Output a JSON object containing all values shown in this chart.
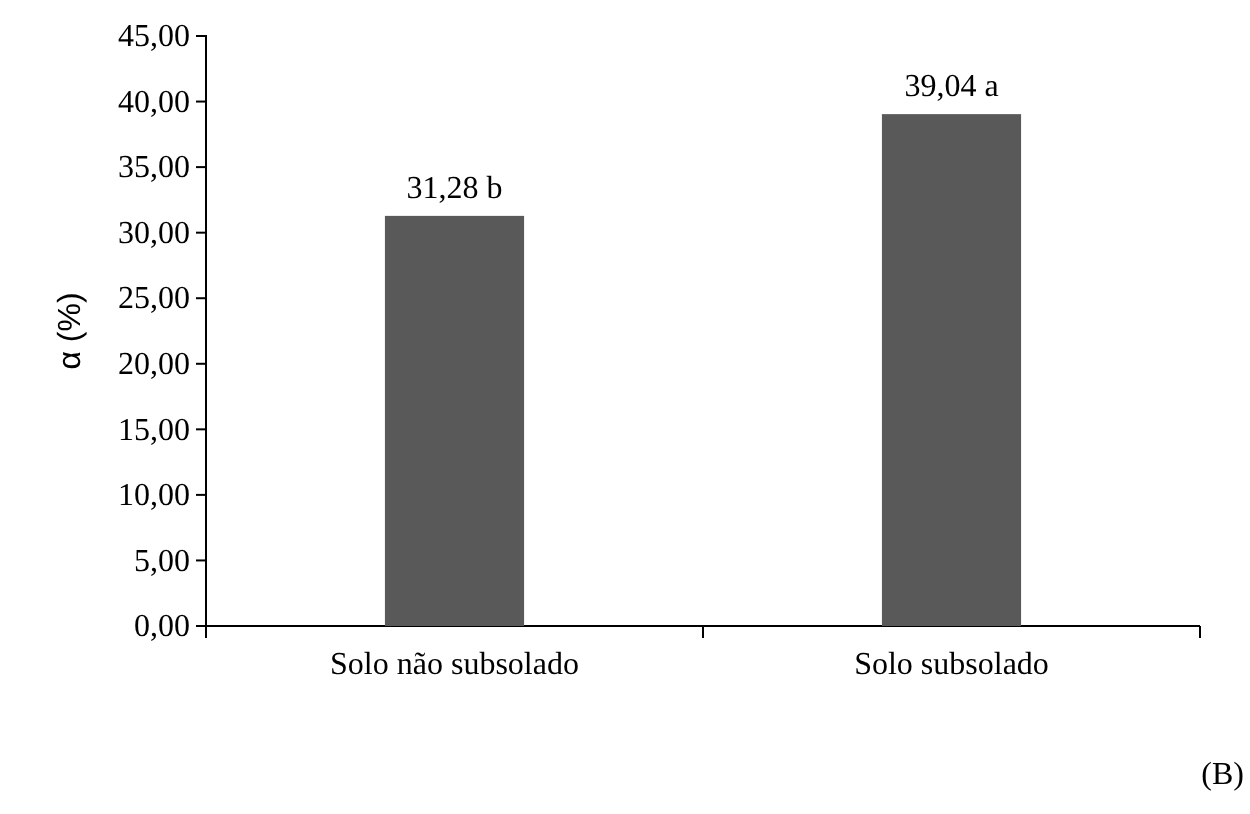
{
  "chart_data": {
    "type": "bar",
    "ylabel": "α (%)",
    "categories": [
      "Solo não subsolado",
      "Solo subsolado"
    ],
    "values": [
      31.28,
      39.04
    ],
    "value_labels": [
      "31,28 b",
      "39,04 a"
    ],
    "color": "#595959",
    "ylim": [
      0,
      45
    ],
    "yticks": [
      {
        "value": 0,
        "label": "0,00"
      },
      {
        "value": 5,
        "label": "5,00"
      },
      {
        "value": 10,
        "label": "10,00"
      },
      {
        "value": 15,
        "label": "15,00"
      },
      {
        "value": 20,
        "label": "20,00"
      },
      {
        "value": 25,
        "label": "25,00"
      },
      {
        "value": 30,
        "label": "30,00"
      },
      {
        "value": 35,
        "label": "35,00"
      },
      {
        "value": 40,
        "label": "40,00"
      },
      {
        "value": 45,
        "label": "45,00"
      }
    ],
    "grid": false,
    "annotations": [
      "(B)"
    ]
  }
}
